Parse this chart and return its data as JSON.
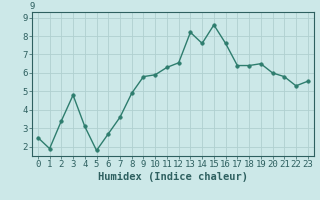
{
  "xlabel": "Humidex (Indice chaleur)",
  "x": [
    0,
    1,
    2,
    3,
    4,
    5,
    6,
    7,
    8,
    9,
    10,
    11,
    12,
    13,
    14,
    15,
    16,
    17,
    18,
    19,
    20,
    21,
    22,
    23
  ],
  "y": [
    2.5,
    1.9,
    3.4,
    4.8,
    3.1,
    1.8,
    2.7,
    3.6,
    4.9,
    5.8,
    5.9,
    6.3,
    6.55,
    8.2,
    7.6,
    8.6,
    7.6,
    6.4,
    6.4,
    6.5,
    6.0,
    5.8,
    5.3,
    5.55
  ],
  "line_color": "#2e7d6e",
  "marker_size": 2.5,
  "line_width": 1.0,
  "bg_color": "#cce8e8",
  "grid_color": "#b0d0d0",
  "tick_color": "#2e6060",
  "label_color": "#2e6060",
  "ylim": [
    1.5,
    9.3
  ],
  "xlim": [
    -0.5,
    23.5
  ],
  "yticks": [
    2,
    3,
    4,
    5,
    6,
    7,
    8,
    9
  ],
  "xticks": [
    0,
    1,
    2,
    3,
    4,
    5,
    6,
    7,
    8,
    9,
    10,
    11,
    12,
    13,
    14,
    15,
    16,
    17,
    18,
    19,
    20,
    21,
    22,
    23
  ],
  "tick_fontsize": 6.5,
  "label_fontsize": 7.5
}
